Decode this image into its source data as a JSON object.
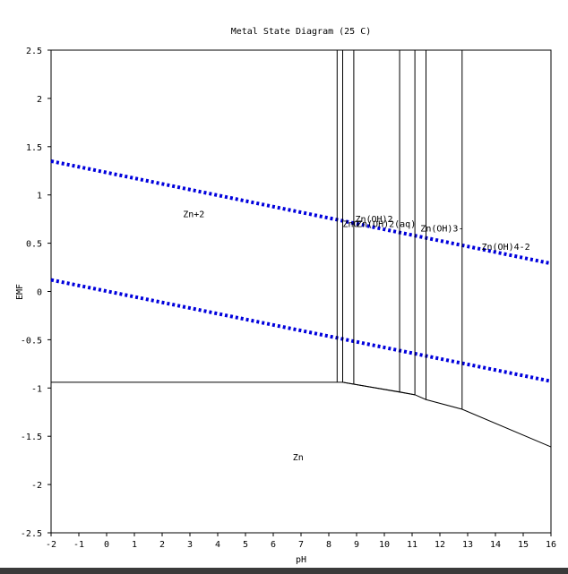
{
  "chart_data": {
    "type": "line",
    "title": "Metal State Diagram (25 C)",
    "xlabel": "pH",
    "ylabel": "EMF",
    "xlim": [
      -2,
      16
    ],
    "ylim": [
      -2.5,
      2.5
    ],
    "xticks": [
      -2,
      -1,
      0,
      1,
      2,
      3,
      4,
      5,
      6,
      7,
      8,
      9,
      10,
      11,
      12,
      13,
      14,
      15,
      16
    ],
    "yticks": [
      2.5,
      2,
      1.5,
      1,
      0.5,
      0,
      -0.5,
      -1,
      -1.5,
      -2,
      -2.5
    ],
    "grid": false,
    "water_lines": [
      {
        "style": "dotted",
        "color": "#0000dd",
        "x": [
          -2,
          16
        ],
        "y": [
          1.35,
          0.29
        ]
      },
      {
        "style": "dotted",
        "color": "#0000dd",
        "x": [
          -2,
          16
        ],
        "y": [
          0.12,
          -0.93
        ]
      }
    ],
    "boundaries": [
      {
        "x": [
          -2,
          8.3
        ],
        "y": [
          -0.94,
          -0.94
        ]
      },
      {
        "x": [
          8.3,
          8.5,
          8.9,
          10.55,
          11.1,
          11.5,
          12.8,
          16
        ],
        "y": [
          -0.94,
          -0.94,
          -0.96,
          -1.04,
          -1.07,
          -1.12,
          -1.22,
          -1.61
        ]
      },
      {
        "x": [
          8.5,
          11.1
        ],
        "y": [
          -0.94,
          -1.07
        ]
      },
      {
        "x": [
          8.3,
          8.3
        ],
        "y": [
          -0.94,
          2.5
        ]
      },
      {
        "x": [
          8.5,
          8.5
        ],
        "y": [
          -0.94,
          2.5
        ]
      },
      {
        "x": [
          8.9,
          8.9
        ],
        "y": [
          -0.96,
          2.5
        ]
      },
      {
        "x": [
          10.55,
          10.55
        ],
        "y": [
          -1.04,
          2.5
        ]
      },
      {
        "x": [
          11.1,
          11.1
        ],
        "y": [
          -1.07,
          2.5
        ]
      },
      {
        "x": [
          11.5,
          11.5
        ],
        "y": [
          -1.12,
          2.5
        ]
      },
      {
        "x": [
          12.8,
          12.8
        ],
        "y": [
          -1.22,
          2.5
        ]
      }
    ],
    "region_labels": [
      {
        "text": "Zn+2",
        "x": 2.75,
        "y": 0.77
      },
      {
        "text": "Zn(OH)2",
        "x": 8.95,
        "y": 0.72
      },
      {
        "text": "ZnO",
        "x": 8.5,
        "y": 0.67
      },
      {
        "text": "Zn(OH)2(aq)",
        "x": 9.0,
        "y": 0.67
      },
      {
        "text": "Zn(OH)3-",
        "x": 11.3,
        "y": 0.62
      },
      {
        "text": "Zn(OH)4-2",
        "x": 13.5,
        "y": 0.43
      },
      {
        "text": "Zn",
        "x": 6.7,
        "y": -1.75
      }
    ]
  }
}
